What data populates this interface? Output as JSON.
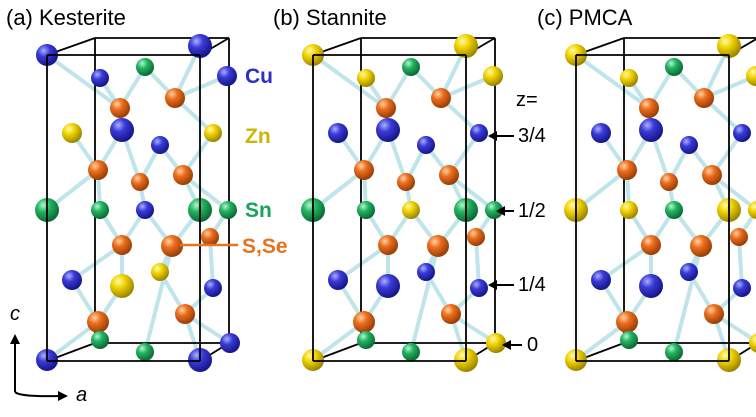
{
  "panels": [
    {
      "id": "kesterite",
      "title": "(a) Kesterite"
    },
    {
      "id": "stannite",
      "title": "(b) Stannite"
    },
    {
      "id": "pmca",
      "title": "(c) PMCA"
    }
  ],
  "legend": [
    {
      "label": "Cu",
      "color": "#2f2fc8"
    },
    {
      "label": "Zn",
      "color": "#c9b800"
    },
    {
      "label": "Sn",
      "color": "#17a357"
    },
    {
      "label": "S,Se",
      "color": "#e8731e"
    }
  ],
  "z_axis": {
    "heading": "z=",
    "levels": [
      "3/4",
      "1/2",
      "1/4",
      "0"
    ]
  },
  "axes": {
    "vertical": "c",
    "horizontal": "a"
  },
  "atom_colors": {
    "Cu": "#3535d0",
    "Zn": "#f0d200",
    "Sn": "#22b060",
    "S": "#ea6a1a",
    "bond": "#bfe4ea",
    "edge": "#000000"
  }
}
